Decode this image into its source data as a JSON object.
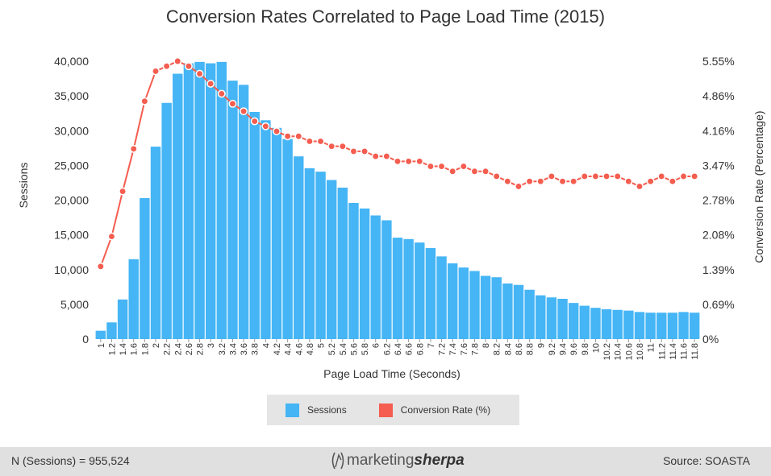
{
  "chart_data": {
    "type": "bar",
    "title": "Conversion Rates Correlated to Page Load Time (2015)",
    "xlabel": "Page Load Time (Seconds)",
    "ylabel": "Sessions",
    "y2label": "Conversion Rate (Percentage)",
    "ylim": [
      0,
      40000
    ],
    "y2lim": [
      0,
      5.55
    ],
    "yticks": [
      "0",
      "5,000",
      "10,000",
      "15,000",
      "20,000",
      "25,000",
      "30,000",
      "35,000",
      "40,000"
    ],
    "y2ticks": [
      "0%",
      "0.69%",
      "1.39%",
      "2.08%",
      "2.78%",
      "3.47%",
      "4.16%",
      "4.86%",
      "5.55%"
    ],
    "grid": false,
    "legend_position": "bottom",
    "x": [
      "1",
      "1.2",
      "1.4",
      "1.6",
      "1.8",
      "2",
      "2.2",
      "2.4",
      "2.6",
      "2.8",
      "3",
      "3.2",
      "3.4",
      "3.6",
      "3.8",
      "4",
      "4.2",
      "4.4",
      "4.6",
      "4.8",
      "5",
      "5.2",
      "5.4",
      "5.6",
      "5.8",
      "6",
      "6.2",
      "6.4",
      "6.6",
      "6.8",
      "7",
      "7.2",
      "7.4",
      "7.6",
      "7.8",
      "8",
      "8.2",
      "8.4",
      "8.6",
      "8.8",
      "9",
      "9.2",
      "9.4",
      "9.6",
      "9.8",
      "10",
      "10.2",
      "10.4",
      "10.6",
      "10.8",
      "11",
      "11.2",
      "11.4",
      "11.6",
      "11.8"
    ],
    "series": [
      {
        "name": "Sessions",
        "type": "bar",
        "axis": "left",
        "color": "#45b5f5",
        "values": [
          1200,
          2400,
          5700,
          11500,
          20300,
          27700,
          34000,
          38200,
          39700,
          39900,
          39700,
          39900,
          37200,
          36600,
          32700,
          31500,
          30400,
          28800,
          26300,
          24600,
          24100,
          22900,
          21800,
          19600,
          18800,
          17800,
          17100,
          14600,
          14400,
          13900,
          13100,
          11900,
          10900,
          10300,
          9800,
          9100,
          8900,
          8000,
          7800,
          7100,
          6300,
          6000,
          5800,
          5200,
          4800,
          4500,
          4300,
          4200,
          4100,
          3900,
          3800,
          3800,
          3800,
          3900,
          3800
        ]
      },
      {
        "name": "Conversion Rate (%)",
        "type": "line",
        "axis": "right",
        "color": "#f45d4f",
        "values": [
          1.45,
          2.05,
          2.95,
          3.8,
          4.75,
          5.35,
          5.45,
          5.55,
          5.45,
          5.3,
          5.1,
          4.9,
          4.7,
          4.55,
          4.35,
          4.25,
          4.15,
          4.05,
          4.05,
          3.95,
          3.95,
          3.85,
          3.85,
          3.75,
          3.75,
          3.65,
          3.65,
          3.55,
          3.55,
          3.55,
          3.45,
          3.45,
          3.35,
          3.45,
          3.35,
          3.35,
          3.25,
          3.15,
          3.05,
          3.15,
          3.15,
          3.25,
          3.15,
          3.15,
          3.25,
          3.25,
          3.25,
          3.25,
          3.15,
          3.05,
          3.15,
          3.25,
          3.15,
          3.25,
          3.25
        ]
      }
    ]
  },
  "legend": {
    "sessions_label": "Sessions",
    "conversion_label": "Conversion Rate (%)"
  },
  "footer": {
    "left_text": "N (Sessions) = 955,524",
    "brand_light": "marketing",
    "brand_bold": "sherpa",
    "right_text": "Source:  SOASTA"
  }
}
